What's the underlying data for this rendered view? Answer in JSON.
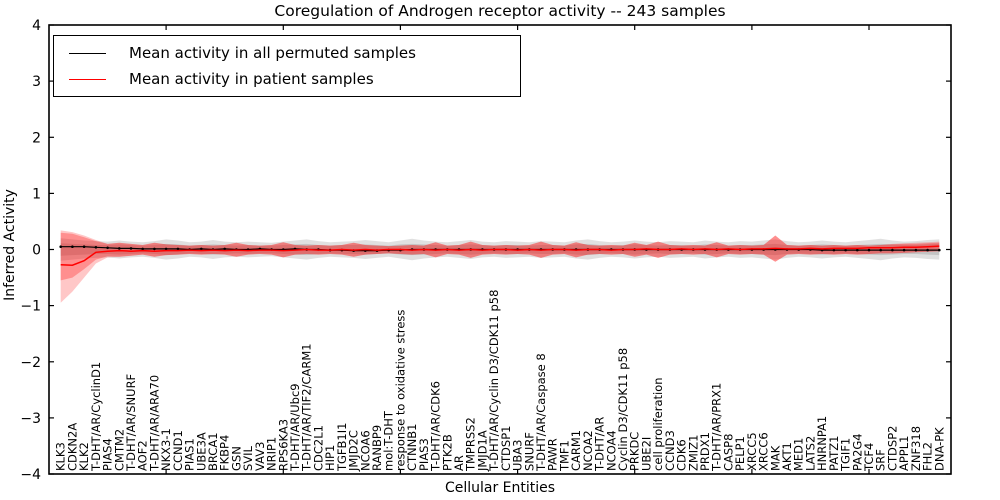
{
  "title": "Coregulation of Androgen receptor activity -- 243 samples",
  "axes": {
    "x_label": "Cellular Entities",
    "y_label": "Inferred Activity",
    "y_tick_values": [
      4,
      3,
      2,
      1,
      0,
      -1,
      -2,
      -3,
      -4
    ],
    "y_tick_labels": [
      "4",
      "3",
      "2",
      "1",
      "0",
      "−1",
      "−2",
      "−3",
      "−4"
    ],
    "x_tick_positions": [
      10,
      20,
      30,
      40,
      50,
      60,
      70
    ]
  },
  "legend": {
    "items": [
      {
        "label": "Mean activity in all permuted samples",
        "color": "#000000"
      },
      {
        "label": "Mean activity in patient samples",
        "color": "#ff0000"
      }
    ]
  },
  "chart_data": {
    "type": "line",
    "title": "Coregulation of Androgen receptor activity -- 243 samples",
    "xlabel": "Cellular Entities",
    "ylabel": "Inferred Activity",
    "ylim": [
      -4,
      4
    ],
    "grid": false,
    "legend_position": "upper left",
    "categories": [
      "KLK3",
      "CDKN2A",
      "KLK2",
      "T-DHT/AR/CyclinD1",
      "PIAS4",
      "CMTM2",
      "T-DHT/AR/SNURF",
      "AOF2",
      "T-DHT/AR/ARA70",
      "NKX3-1",
      "CCND1",
      "PIAS1",
      "UBE3A",
      "BRCA1",
      "FKBP4",
      "GSN",
      "SVIL",
      "VAV3",
      "NRIP1",
      "RPS6KA3",
      "T-DHT/AR/Ubc9",
      "T-DHT/AR/TIF2/CARM1",
      "CDC2L1",
      "HIP1",
      "TGFB1I1",
      "JMJD2C",
      "NCOA6",
      "RANBP9",
      "mol:T-DHT",
      "response to oxidative stress",
      "CTNNB1",
      "PIAS3",
      "T-DHT/AR/CDK6",
      "PTK2B",
      "AR",
      "TMPRSS2",
      "JMJD1A",
      "T-DHT/AR/Cyclin D3/CDK11 p58",
      "CTDSP1",
      "UBA3",
      "SNURF",
      "T-DHT/AR/Caspase 8",
      "PAWR",
      "TMF1",
      "CARM1",
      "NCOA2",
      "T-DHT/AR",
      "NCOA4",
      "Cyclin D3/CDK11 p58",
      "PRKDC",
      "UBE2I",
      "cell proliferation",
      "CCND3",
      "CDK6",
      "ZMIZ1",
      "PRDX1",
      "T-DHT/AR/PRX1",
      "CASP8",
      "PELP1",
      "XRCC5",
      "XRCC6",
      "MAK",
      "AKT1",
      "MED1",
      "LATS2",
      "HNRNPA1",
      "PATZ1",
      "TGIF1",
      "PA2G4",
      "TCF4",
      "SRF",
      "CTDSP2",
      "APPL1",
      "ZNF318",
      "FHL2",
      "DNA-PK"
    ],
    "series": [
      {
        "name": "Mean activity in all permuted samples",
        "color": "#000000",
        "width": 1.2,
        "markers": true,
        "values": [
          0.05,
          0.05,
          0.05,
          0.04,
          0.03,
          0.02,
          0.02,
          0.01,
          0.01,
          0.01,
          0.01,
          0.0,
          0.01,
          0.0,
          0.01,
          0.0,
          0.0,
          0.01,
          0.0,
          0.0,
          0.01,
          0.0,
          0.0,
          -0.01,
          -0.01,
          -0.02,
          -0.02,
          -0.02,
          -0.01,
          -0.01,
          0.0,
          0.0,
          0.0,
          0.0,
          0.0,
          0.0,
          0.0,
          0.0,
          0.0,
          0.0,
          0.0,
          0.0,
          0.0,
          0.0,
          0.0,
          0.0,
          0.0,
          0.0,
          0.0,
          0.0,
          0.0,
          0.0,
          0.0,
          0.0,
          0.0,
          0.0,
          0.0,
          0.0,
          0.0,
          0.0,
          0.0,
          0.0,
          0.0,
          0.0,
          0.0,
          -0.01,
          -0.01,
          -0.01,
          -0.01,
          -0.01,
          -0.01,
          -0.01,
          -0.01,
          -0.01,
          -0.01,
          -0.01
        ]
      },
      {
        "name": "Mean activity in patient samples",
        "color": "#ff0000",
        "width": 1.5,
        "markers": false,
        "values": [
          -0.27,
          -0.28,
          -0.2,
          -0.05,
          -0.03,
          -0.02,
          -0.03,
          -0.02,
          -0.03,
          -0.02,
          -0.02,
          -0.01,
          -0.02,
          -0.01,
          -0.02,
          -0.01,
          -0.02,
          -0.01,
          -0.01,
          -0.02,
          -0.01,
          0.0,
          -0.01,
          -0.01,
          0.0,
          -0.01,
          0.0,
          -0.01,
          0.0,
          0.0,
          -0.01,
          0.0,
          -0.01,
          0.0,
          -0.01,
          0.0,
          -0.01,
          0.0,
          0.0,
          -0.01,
          0.0,
          -0.01,
          0.0,
          0.0,
          -0.01,
          0.0,
          0.0,
          -0.01,
          0.0,
          0.0,
          0.01,
          0.0,
          0.0,
          0.01,
          0.0,
          0.01,
          0.0,
          0.01,
          0.0,
          0.01,
          0.01,
          0.02,
          0.01,
          0.01,
          0.02,
          0.01,
          0.02,
          0.02,
          0.02,
          0.03,
          0.03,
          0.03,
          0.04,
          0.04,
          0.05,
          0.06
        ]
      }
    ],
    "bands": [
      {
        "name": "permuted-range",
        "color": "rgba(0,0,0,0.12)",
        "upper": [
          0.2,
          0.18,
          0.16,
          0.15,
          0.14,
          0.16,
          0.14,
          0.13,
          0.15,
          0.18,
          0.16,
          0.13,
          0.14,
          0.17,
          0.14,
          0.13,
          0.14,
          0.13,
          0.12,
          0.14,
          0.16,
          0.18,
          0.15,
          0.13,
          0.14,
          0.15,
          0.17,
          0.15,
          0.13,
          0.16,
          0.19,
          0.16,
          0.14,
          0.13,
          0.15,
          0.17,
          0.14,
          0.13,
          0.15,
          0.14,
          0.13,
          0.15,
          0.14,
          0.13,
          0.16,
          0.18,
          0.15,
          0.13,
          0.14,
          0.16,
          0.14,
          0.13,
          0.15,
          0.14,
          0.13,
          0.16,
          0.14,
          0.13,
          0.15,
          0.14,
          0.16,
          0.18,
          0.15,
          0.13,
          0.14,
          0.16,
          0.14,
          0.13,
          0.15,
          0.17,
          0.19,
          0.16,
          0.14,
          0.15,
          0.17,
          0.18
        ],
        "lower": [
          -0.2,
          -0.18,
          -0.16,
          -0.15,
          -0.14,
          -0.16,
          -0.14,
          -0.13,
          -0.15,
          -0.18,
          -0.16,
          -0.13,
          -0.14,
          -0.17,
          -0.14,
          -0.13,
          -0.14,
          -0.13,
          -0.12,
          -0.14,
          -0.16,
          -0.18,
          -0.15,
          -0.13,
          -0.14,
          -0.15,
          -0.17,
          -0.15,
          -0.13,
          -0.16,
          -0.19,
          -0.16,
          -0.14,
          -0.13,
          -0.15,
          -0.17,
          -0.14,
          -0.13,
          -0.15,
          -0.14,
          -0.13,
          -0.15,
          -0.14,
          -0.13,
          -0.16,
          -0.18,
          -0.15,
          -0.13,
          -0.14,
          -0.16,
          -0.14,
          -0.13,
          -0.15,
          -0.14,
          -0.13,
          -0.16,
          -0.14,
          -0.13,
          -0.15,
          -0.14,
          -0.16,
          -0.18,
          -0.15,
          -0.13,
          -0.14,
          -0.16,
          -0.14,
          -0.13,
          -0.15,
          -0.17,
          -0.19,
          -0.16,
          -0.14,
          -0.15,
          -0.17,
          -0.18
        ]
      },
      {
        "name": "permuted-inner",
        "color": "rgba(0,0,0,0.12)",
        "upper": [
          0.11,
          0.1,
          0.09,
          0.08,
          0.08,
          0.09,
          0.08,
          0.07,
          0.08,
          0.1,
          0.09,
          0.07,
          0.08,
          0.09,
          0.08,
          0.07,
          0.08,
          0.07,
          0.07,
          0.08,
          0.09,
          0.1,
          0.08,
          0.07,
          0.08,
          0.08,
          0.09,
          0.08,
          0.07,
          0.09,
          0.1,
          0.09,
          0.08,
          0.07,
          0.08,
          0.09,
          0.08,
          0.07,
          0.08,
          0.08,
          0.07,
          0.08,
          0.08,
          0.07,
          0.09,
          0.1,
          0.08,
          0.07,
          0.08,
          0.09,
          0.08,
          0.07,
          0.08,
          0.08,
          0.07,
          0.09,
          0.08,
          0.07,
          0.08,
          0.08,
          0.09,
          0.1,
          0.08,
          0.07,
          0.08,
          0.09,
          0.08,
          0.07,
          0.08,
          0.09,
          0.1,
          0.09,
          0.08,
          0.08,
          0.09,
          0.1
        ],
        "lower": [
          -0.11,
          -0.1,
          -0.09,
          -0.08,
          -0.08,
          -0.09,
          -0.08,
          -0.07,
          -0.08,
          -0.1,
          -0.09,
          -0.07,
          -0.08,
          -0.09,
          -0.08,
          -0.07,
          -0.08,
          -0.07,
          -0.07,
          -0.08,
          -0.09,
          -0.1,
          -0.08,
          -0.07,
          -0.08,
          -0.08,
          -0.09,
          -0.08,
          -0.07,
          -0.09,
          -0.1,
          -0.09,
          -0.08,
          -0.07,
          -0.08,
          -0.09,
          -0.08,
          -0.07,
          -0.08,
          -0.08,
          -0.07,
          -0.08,
          -0.08,
          -0.07,
          -0.09,
          -0.1,
          -0.08,
          -0.07,
          -0.08,
          -0.09,
          -0.08,
          -0.07,
          -0.08,
          -0.08,
          -0.07,
          -0.09,
          -0.08,
          -0.07,
          -0.08,
          -0.08,
          -0.09,
          -0.1,
          -0.08,
          -0.07,
          -0.08,
          -0.09,
          -0.08,
          -0.07,
          -0.08,
          -0.09,
          -0.1,
          -0.09,
          -0.08,
          -0.08,
          -0.09,
          -0.1
        ]
      },
      {
        "name": "patient-range",
        "color": "rgba(255,0,0,0.22)",
        "upper": [
          0.34,
          0.31,
          0.25,
          0.17,
          0.1,
          0.12,
          0.1,
          0.08,
          0.12,
          0.09,
          0.08,
          0.07,
          0.08,
          0.07,
          0.08,
          0.12,
          0.08,
          0.07,
          0.08,
          0.13,
          0.08,
          0.07,
          0.08,
          0.07,
          0.08,
          0.12,
          0.08,
          0.07,
          0.06,
          0.07,
          0.08,
          0.07,
          0.13,
          0.07,
          0.08,
          0.14,
          0.08,
          0.07,
          0.08,
          0.07,
          0.08,
          0.14,
          0.08,
          0.07,
          0.13,
          0.08,
          0.07,
          0.08,
          0.07,
          0.12,
          0.08,
          0.14,
          0.08,
          0.07,
          0.08,
          0.07,
          0.13,
          0.07,
          0.08,
          0.07,
          0.08,
          0.25,
          0.08,
          0.07,
          0.08,
          0.07,
          0.08,
          0.07,
          0.08,
          0.07,
          0.08,
          0.1,
          0.11,
          0.12,
          0.13,
          0.14
        ],
        "lower": [
          -0.95,
          -0.75,
          -0.5,
          -0.25,
          -0.14,
          -0.13,
          -0.11,
          -0.09,
          -0.13,
          -0.1,
          -0.09,
          -0.08,
          -0.09,
          -0.08,
          -0.09,
          -0.13,
          -0.09,
          -0.08,
          -0.09,
          -0.14,
          -0.09,
          -0.08,
          -0.09,
          -0.08,
          -0.09,
          -0.13,
          -0.09,
          -0.08,
          -0.07,
          -0.08,
          -0.09,
          -0.08,
          -0.14,
          -0.08,
          -0.09,
          -0.15,
          -0.09,
          -0.08,
          -0.09,
          -0.08,
          -0.09,
          -0.15,
          -0.09,
          -0.08,
          -0.14,
          -0.09,
          -0.08,
          -0.09,
          -0.08,
          -0.13,
          -0.09,
          -0.15,
          -0.09,
          -0.08,
          -0.09,
          -0.08,
          -0.14,
          -0.08,
          -0.09,
          -0.08,
          -0.09,
          -0.22,
          -0.09,
          -0.08,
          -0.09,
          -0.08,
          -0.09,
          -0.08,
          -0.09,
          -0.08,
          -0.07,
          -0.07,
          -0.06,
          -0.05,
          -0.04,
          -0.03
        ]
      },
      {
        "name": "patient-inner",
        "color": "rgba(255,0,0,0.28)",
        "upper": [
          0.3,
          0.28,
          0.22,
          0.15,
          0.1,
          0.12,
          0.1,
          0.08,
          0.12,
          0.09,
          0.08,
          0.07,
          0.08,
          0.07,
          0.08,
          0.12,
          0.08,
          0.07,
          0.08,
          0.13,
          0.08,
          0.07,
          0.08,
          0.07,
          0.08,
          0.12,
          0.08,
          0.07,
          0.06,
          0.07,
          0.08,
          0.07,
          0.13,
          0.07,
          0.08,
          0.14,
          0.08,
          0.07,
          0.08,
          0.07,
          0.08,
          0.14,
          0.08,
          0.07,
          0.13,
          0.08,
          0.07,
          0.08,
          0.07,
          0.12,
          0.08,
          0.14,
          0.08,
          0.07,
          0.08,
          0.07,
          0.13,
          0.07,
          0.08,
          0.07,
          0.08,
          0.25,
          0.08,
          0.07,
          0.08,
          0.07,
          0.08,
          0.07,
          0.08,
          0.07,
          0.08,
          0.09,
          0.1,
          0.1,
          0.11,
          0.12
        ],
        "lower": [
          -0.55,
          -0.5,
          -0.35,
          -0.18,
          -0.12,
          -0.13,
          -0.11,
          -0.09,
          -0.13,
          -0.1,
          -0.09,
          -0.08,
          -0.09,
          -0.08,
          -0.09,
          -0.13,
          -0.09,
          -0.08,
          -0.09,
          -0.14,
          -0.09,
          -0.08,
          -0.09,
          -0.08,
          -0.09,
          -0.13,
          -0.09,
          -0.08,
          -0.07,
          -0.08,
          -0.09,
          -0.08,
          -0.14,
          -0.08,
          -0.09,
          -0.15,
          -0.09,
          -0.08,
          -0.09,
          -0.08,
          -0.09,
          -0.15,
          -0.09,
          -0.08,
          -0.14,
          -0.09,
          -0.08,
          -0.09,
          -0.08,
          -0.13,
          -0.09,
          -0.15,
          -0.09,
          -0.08,
          -0.09,
          -0.08,
          -0.14,
          -0.08,
          -0.09,
          -0.08,
          -0.09,
          -0.22,
          -0.09,
          -0.08,
          -0.09,
          -0.08,
          -0.09,
          -0.08,
          -0.09,
          -0.08,
          -0.07,
          -0.07,
          -0.06,
          -0.05,
          -0.04,
          -0.03
        ]
      }
    ]
  }
}
